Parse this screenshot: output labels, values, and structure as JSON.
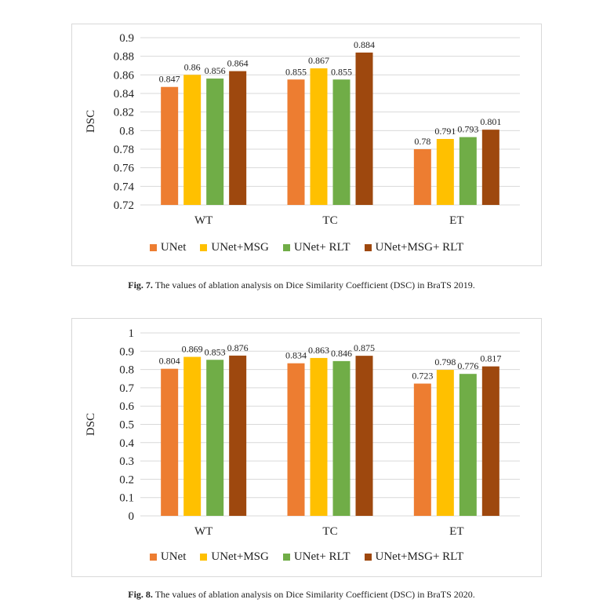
{
  "colors": {
    "UNet": "#ed7d31",
    "UNet+MSG": "#ffc000",
    "UNet+ RLT": "#70ad47",
    "UNet+MSG+ RLT": "#9e480e",
    "grid": "#d9d9d9",
    "axis_text": "#222222"
  },
  "chart_data": [
    {
      "type": "bar",
      "categories": [
        "WT",
        "TC",
        "ET"
      ],
      "ylabel": "DSC",
      "ylim": [
        0.72,
        0.9
      ],
      "yticks": [
        "0.72",
        "0.74",
        "0.76",
        "0.78",
        "0.8",
        "0.82",
        "0.84",
        "0.86",
        "0.88",
        "0.9"
      ],
      "grid": true,
      "legend_position": "bottom",
      "series": [
        {
          "name": "UNet",
          "values": [
            0.847,
            0.855,
            0.78
          ]
        },
        {
          "name": "UNet+MSG",
          "values": [
            0.86,
            0.867,
            0.791
          ]
        },
        {
          "name": "UNet+ RLT",
          "values": [
            0.856,
            0.855,
            0.793
          ]
        },
        {
          "name": "UNet+MSG+ RLT",
          "values": [
            0.864,
            0.884,
            0.801
          ]
        }
      ],
      "value_labels": [
        [
          "0.847",
          "0.855",
          "0.78"
        ],
        [
          "0.86",
          "0.867",
          "0.791"
        ],
        [
          "0.856",
          "0.855",
          "0.793"
        ],
        [
          "0.864",
          "0.884",
          "0.801"
        ]
      ]
    },
    {
      "type": "bar",
      "categories": [
        "WT",
        "TC",
        "ET"
      ],
      "ylabel": "DSC",
      "ylim": [
        0,
        1
      ],
      "yticks": [
        "0",
        "0.1",
        "0.2",
        "0.3",
        "0.4",
        "0.5",
        "0.6",
        "0.7",
        "0.8",
        "0.9",
        "1"
      ],
      "grid": true,
      "legend_position": "bottom",
      "series": [
        {
          "name": "UNet",
          "values": [
            0.804,
            0.834,
            0.723
          ]
        },
        {
          "name": "UNet+MSG",
          "values": [
            0.869,
            0.863,
            0.798
          ]
        },
        {
          "name": "UNet+ RLT",
          "values": [
            0.853,
            0.846,
            0.776
          ]
        },
        {
          "name": "UNet+MSG+ RLT",
          "values": [
            0.876,
            0.875,
            0.817
          ]
        }
      ],
      "value_labels": [
        [
          "0.804",
          "0.834",
          "0.723"
        ],
        [
          "0.869",
          "0.863",
          "0.798"
        ],
        [
          "0.853",
          "0.846",
          "0.776"
        ],
        [
          "0.876",
          "0.875",
          "0.817"
        ]
      ]
    }
  ],
  "captions": [
    {
      "label": "Fig. 7.",
      "text": "The values of ablation analysis on Dice Similarity Coefficient (DSC) in BraTS 2019."
    },
    {
      "label": "Fig. 8.",
      "text": "The values of ablation analysis on Dice Similarity Coefficient (DSC) in BraTS 2020."
    }
  ]
}
